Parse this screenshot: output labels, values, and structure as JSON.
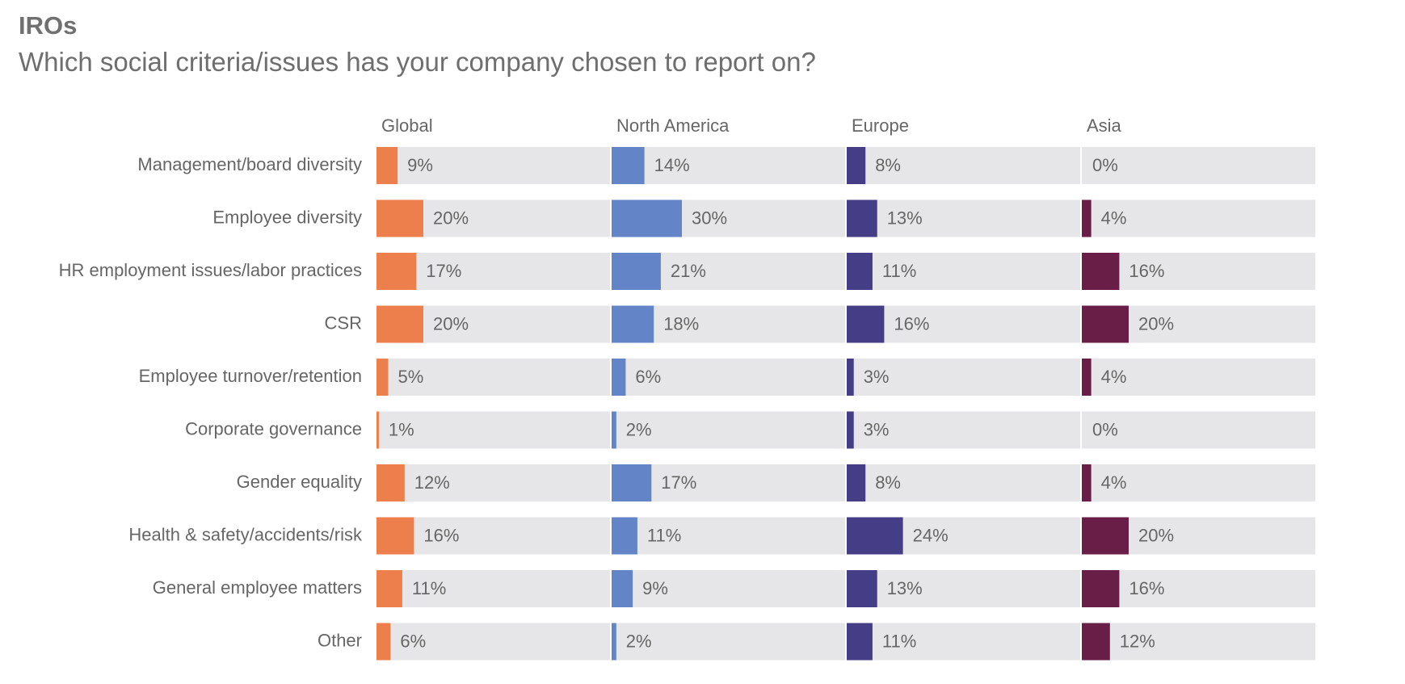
{
  "header": {
    "title": "IROs",
    "subtitle": "Which social criteria/issues has your company chosen to report on?"
  },
  "colors": {
    "track": "#e6e6e8",
    "label_text": "#666666",
    "value_text": "#666666",
    "Global": "#ec7f4b",
    "North America": "#6384c6",
    "Europe": "#453e86",
    "Asia": "#691e47"
  },
  "chart_data": {
    "type": "bar",
    "orientation": "horizontal",
    "layout": "small-multiples",
    "value_format": "percent",
    "xlim": [
      0,
      100
    ],
    "categories": [
      "Management/board diversity",
      "Employee diversity",
      "HR employment issues/labor practices",
      "CSR",
      "Employee turnover/retention",
      "Corporate governance",
      "Gender equality",
      "Health & safety/accidents/risk",
      "General employee matters",
      "Other"
    ],
    "series": [
      {
        "name": "Global",
        "values": [
          9,
          20,
          17,
          20,
          5,
          1,
          12,
          16,
          11,
          6
        ]
      },
      {
        "name": "North America",
        "values": [
          14,
          30,
          21,
          18,
          6,
          2,
          17,
          11,
          9,
          2
        ]
      },
      {
        "name": "Europe",
        "values": [
          8,
          13,
          11,
          16,
          3,
          3,
          8,
          24,
          13,
          11
        ]
      },
      {
        "name": "Asia",
        "values": [
          0,
          4,
          16,
          20,
          4,
          0,
          4,
          20,
          16,
          12
        ]
      }
    ]
  }
}
